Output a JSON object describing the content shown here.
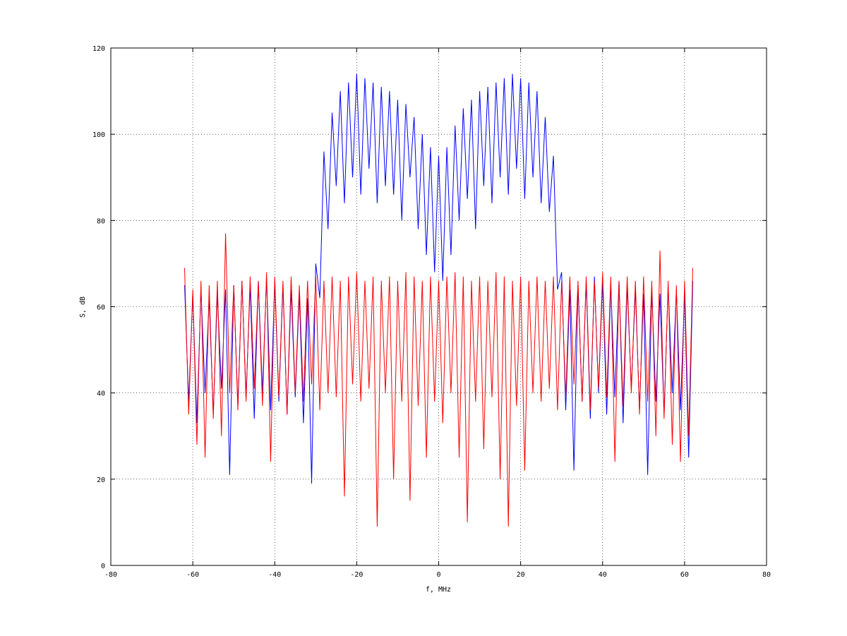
{
  "chart_data": {
    "type": "line",
    "xlabel": "f, MHz",
    "ylabel": "S, dB",
    "xlim": [
      -80,
      80
    ],
    "ylim": [
      0,
      120
    ],
    "xticks": [
      -80,
      -60,
      -40,
      -20,
      0,
      20,
      40,
      60,
      80
    ],
    "yticks": [
      0,
      20,
      40,
      60,
      80,
      100,
      120
    ],
    "grid": true,
    "x": [
      -62,
      -61,
      -60,
      -59,
      -58,
      -57,
      -56,
      -55,
      -54,
      -53,
      -52,
      -51,
      -50,
      -49,
      -48,
      -47,
      -46,
      -45,
      -44,
      -43,
      -42,
      -41,
      -40,
      -39,
      -38,
      -37,
      -36,
      -35,
      -34,
      -33,
      -32,
      -31,
      -30,
      -29,
      -28,
      -27,
      -26,
      -25,
      -24,
      -23,
      -22,
      -21,
      -20,
      -19,
      -18,
      -17,
      -16,
      -15,
      -14,
      -13,
      -12,
      -11,
      -10,
      -9,
      -8,
      -7,
      -6,
      -5,
      -4,
      -3,
      -2,
      -1,
      0,
      1,
      2,
      3,
      4,
      5,
      6,
      7,
      8,
      9,
      10,
      11,
      12,
      13,
      14,
      15,
      16,
      17,
      18,
      19,
      20,
      21,
      22,
      23,
      24,
      25,
      26,
      27,
      28,
      29,
      30,
      31,
      32,
      33,
      34,
      35,
      36,
      37,
      38,
      39,
      40,
      41,
      42,
      43,
      44,
      45,
      46,
      47,
      48,
      49,
      50,
      51,
      52,
      53,
      54,
      55,
      56,
      57,
      58,
      59,
      60,
      61,
      62
    ],
    "series": [
      {
        "color": "#0000ff",
        "values": [
          65,
          38,
          63,
          33,
          64,
          40,
          62,
          35,
          63,
          41,
          64,
          21,
          65,
          37,
          66,
          39,
          65,
          34,
          66,
          40,
          67,
          36,
          66,
          38,
          65,
          35,
          64,
          39,
          63,
          33,
          62,
          19,
          70,
          62,
          96,
          78,
          105,
          88,
          110,
          84,
          112,
          90,
          114,
          86,
          113,
          92,
          112,
          84,
          111,
          88,
          110,
          86,
          108,
          80,
          107,
          90,
          104,
          78,
          100,
          72,
          97,
          68,
          95,
          66,
          97,
          72,
          102,
          80,
          106,
          85,
          108,
          78,
          110,
          88,
          111,
          84,
          112,
          90,
          113,
          86,
          114,
          92,
          113,
          85,
          112,
          90,
          110,
          84,
          104,
          82,
          95,
          64,
          68,
          36,
          64,
          22,
          65,
          38,
          66,
          34,
          67,
          40,
          66,
          35,
          65,
          39,
          66,
          33,
          65,
          41,
          64,
          36,
          63,
          21,
          64,
          38,
          63,
          35,
          65,
          40,
          64,
          36,
          63,
          25,
          66
        ]
      },
      {
        "color": "#ff0000",
        "values": [
          69,
          35,
          64,
          28,
          66,
          25,
          65,
          34,
          66,
          30,
          77,
          40,
          65,
          36,
          66,
          38,
          67,
          41,
          66,
          37,
          68,
          24,
          67,
          39,
          66,
          35,
          67,
          40,
          65,
          38,
          66,
          42,
          67,
          36,
          66,
          40,
          67,
          39,
          66,
          16,
          67,
          42,
          68,
          38,
          66,
          41,
          67,
          9,
          66,
          40,
          67,
          20,
          66,
          38,
          68,
          15,
          67,
          37,
          66,
          25,
          67,
          38,
          66,
          33,
          67,
          40,
          68,
          25,
          67,
          10,
          66,
          38,
          67,
          27,
          66,
          39,
          68,
          20,
          67,
          9,
          66,
          37,
          67,
          22,
          66,
          40,
          67,
          38,
          66,
          41,
          67,
          36,
          66,
          39,
          67,
          42,
          66,
          38,
          67,
          36,
          66,
          41,
          68,
          39,
          67,
          24,
          66,
          37,
          67,
          40,
          66,
          35,
          67,
          38,
          66,
          30,
          73,
          34,
          66,
          28,
          65,
          24,
          66,
          30,
          69
        ]
      }
    ]
  }
}
